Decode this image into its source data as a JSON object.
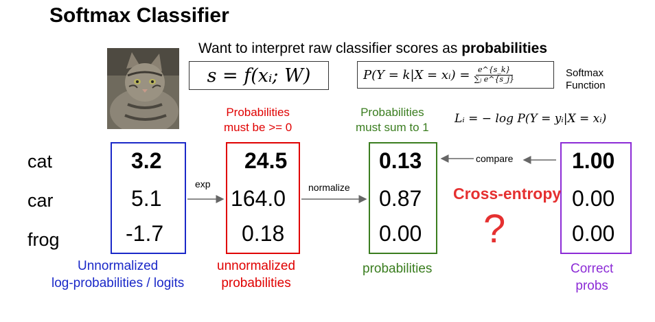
{
  "title": "Softmax Classifier",
  "subtitle": {
    "text": "Want to interpret raw classifier scores as ",
    "bold": "probabilities"
  },
  "formulas": {
    "score": "s = f(xᵢ; W)",
    "softmax_lhs": "P(Y = k|X = xᵢ) =",
    "softmax_num": "e^{s_k}",
    "softmax_den": "∑ⱼ e^{s_j}",
    "softmax_label_line1": "Softmax",
    "softmax_label_line2": "Function",
    "loss": "Lᵢ = − log P(Y = yᵢ|X = xᵢ)"
  },
  "notes": {
    "prob_nonneg_line1": "Probabilities",
    "prob_nonneg_line2": "must be >= 0",
    "prob_sum_line1": "Probabilities",
    "prob_sum_line2": "must sum to 1"
  },
  "classes": [
    "cat",
    "car",
    "frog"
  ],
  "columns": {
    "logits": {
      "values": [
        "3.2",
        "5.1",
        "-1.7"
      ],
      "label_line1": "Unnormalized",
      "label_line2": "log-probabilities / logits",
      "color": "#1a28c8"
    },
    "unnormalized": {
      "values": [
        "24.5",
        "164.0",
        "0.18"
      ],
      "label_line1": "unnormalized",
      "label_line2": "probabilities",
      "color": "#e00000"
    },
    "probabilities": {
      "values": [
        "0.13",
        "0.87",
        "0.00"
      ],
      "label_line1": "probabilities",
      "color": "#3a7d1f"
    },
    "correct": {
      "values": [
        "1.00",
        "0.00",
        "0.00"
      ],
      "label_line1": "Correct",
      "label_line2": "probs",
      "color": "#8c2bd6"
    }
  },
  "arrows": {
    "exp": "exp",
    "normalize": "normalize",
    "compare": "compare"
  },
  "cross_entropy": "Cross-entropy",
  "question_mark": "?",
  "image": {
    "subject": "tabby cat photo"
  }
}
